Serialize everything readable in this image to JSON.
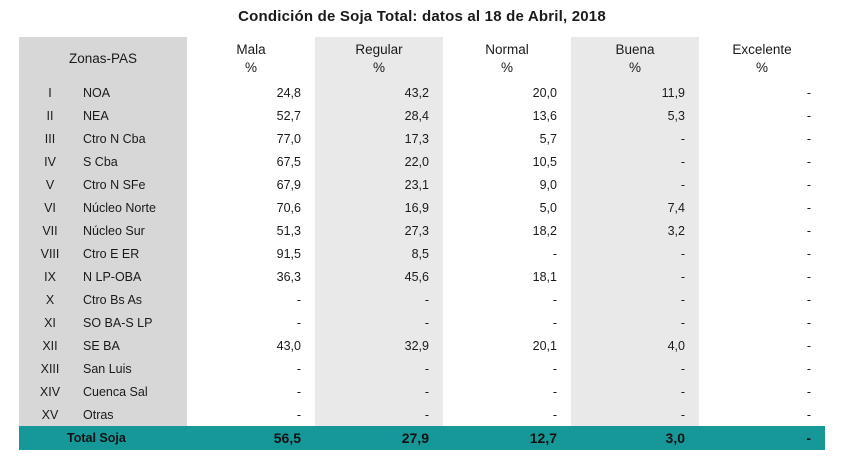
{
  "title": "Condición de Soja Total: datos al 18 de Abril, 2018",
  "header": {
    "zonas": "Zonas-PAS",
    "columns": [
      {
        "label": "Mala",
        "unit": "%"
      },
      {
        "label": "Regular",
        "unit": "%"
      },
      {
        "label": "Normal",
        "unit": "%"
      },
      {
        "label": "Buena",
        "unit": "%"
      },
      {
        "label": "Excelente",
        "unit": "%"
      }
    ]
  },
  "rows": [
    {
      "num": "I",
      "zone": "NOA",
      "values": [
        "24,8",
        "43,2",
        "20,0",
        "11,9",
        "-"
      ]
    },
    {
      "num": "II",
      "zone": "NEA",
      "values": [
        "52,7",
        "28,4",
        "13,6",
        "5,3",
        "-"
      ]
    },
    {
      "num": "III",
      "zone": "Ctro N Cba",
      "values": [
        "77,0",
        "17,3",
        "5,7",
        "-",
        "-"
      ]
    },
    {
      "num": "IV",
      "zone": "S Cba",
      "values": [
        "67,5",
        "22,0",
        "10,5",
        "-",
        "-"
      ]
    },
    {
      "num": "V",
      "zone": "Ctro N SFe",
      "values": [
        "67,9",
        "23,1",
        "9,0",
        "-",
        "-"
      ]
    },
    {
      "num": "VI",
      "zone": "Núcleo Norte",
      "values": [
        "70,6",
        "16,9",
        "5,0",
        "7,4",
        "-"
      ]
    },
    {
      "num": "VII",
      "zone": "Núcleo Sur",
      "values": [
        "51,3",
        "27,3",
        "18,2",
        "3,2",
        "-"
      ]
    },
    {
      "num": "VIII",
      "zone": "Ctro E ER",
      "values": [
        "91,5",
        "8,5",
        "-",
        "-",
        "-"
      ]
    },
    {
      "num": "IX",
      "zone": "N LP-OBA",
      "values": [
        "36,3",
        "45,6",
        "18,1",
        "-",
        "-"
      ]
    },
    {
      "num": "X",
      "zone": "Ctro Bs As",
      "values": [
        "-",
        "-",
        "-",
        "-",
        "-"
      ]
    },
    {
      "num": "XI",
      "zone": "SO BA-S LP",
      "values": [
        "-",
        "-",
        "-",
        "-",
        "-"
      ]
    },
    {
      "num": "XII",
      "zone": "SE BA",
      "values": [
        "43,0",
        "32,9",
        "20,1",
        "4,0",
        "-"
      ]
    },
    {
      "num": "XIII",
      "zone": "San Luis",
      "values": [
        "-",
        "-",
        "-",
        "-",
        "-"
      ]
    },
    {
      "num": "XIV",
      "zone": "Cuenca Sal",
      "values": [
        "-",
        "-",
        "-",
        "-",
        "-"
      ]
    },
    {
      "num": "XV",
      "zone": "Otras",
      "values": [
        "-",
        "-",
        "-",
        "-",
        "-"
      ]
    }
  ],
  "total": {
    "label": "Total Soja",
    "values": [
      "56,5",
      "27,9",
      "12,7",
      "3,0",
      "-"
    ]
  },
  "colors": {
    "zone_bg": "#d7d7d7",
    "stripe_bg": "#e9e9e9",
    "total_bg": "#169898"
  }
}
